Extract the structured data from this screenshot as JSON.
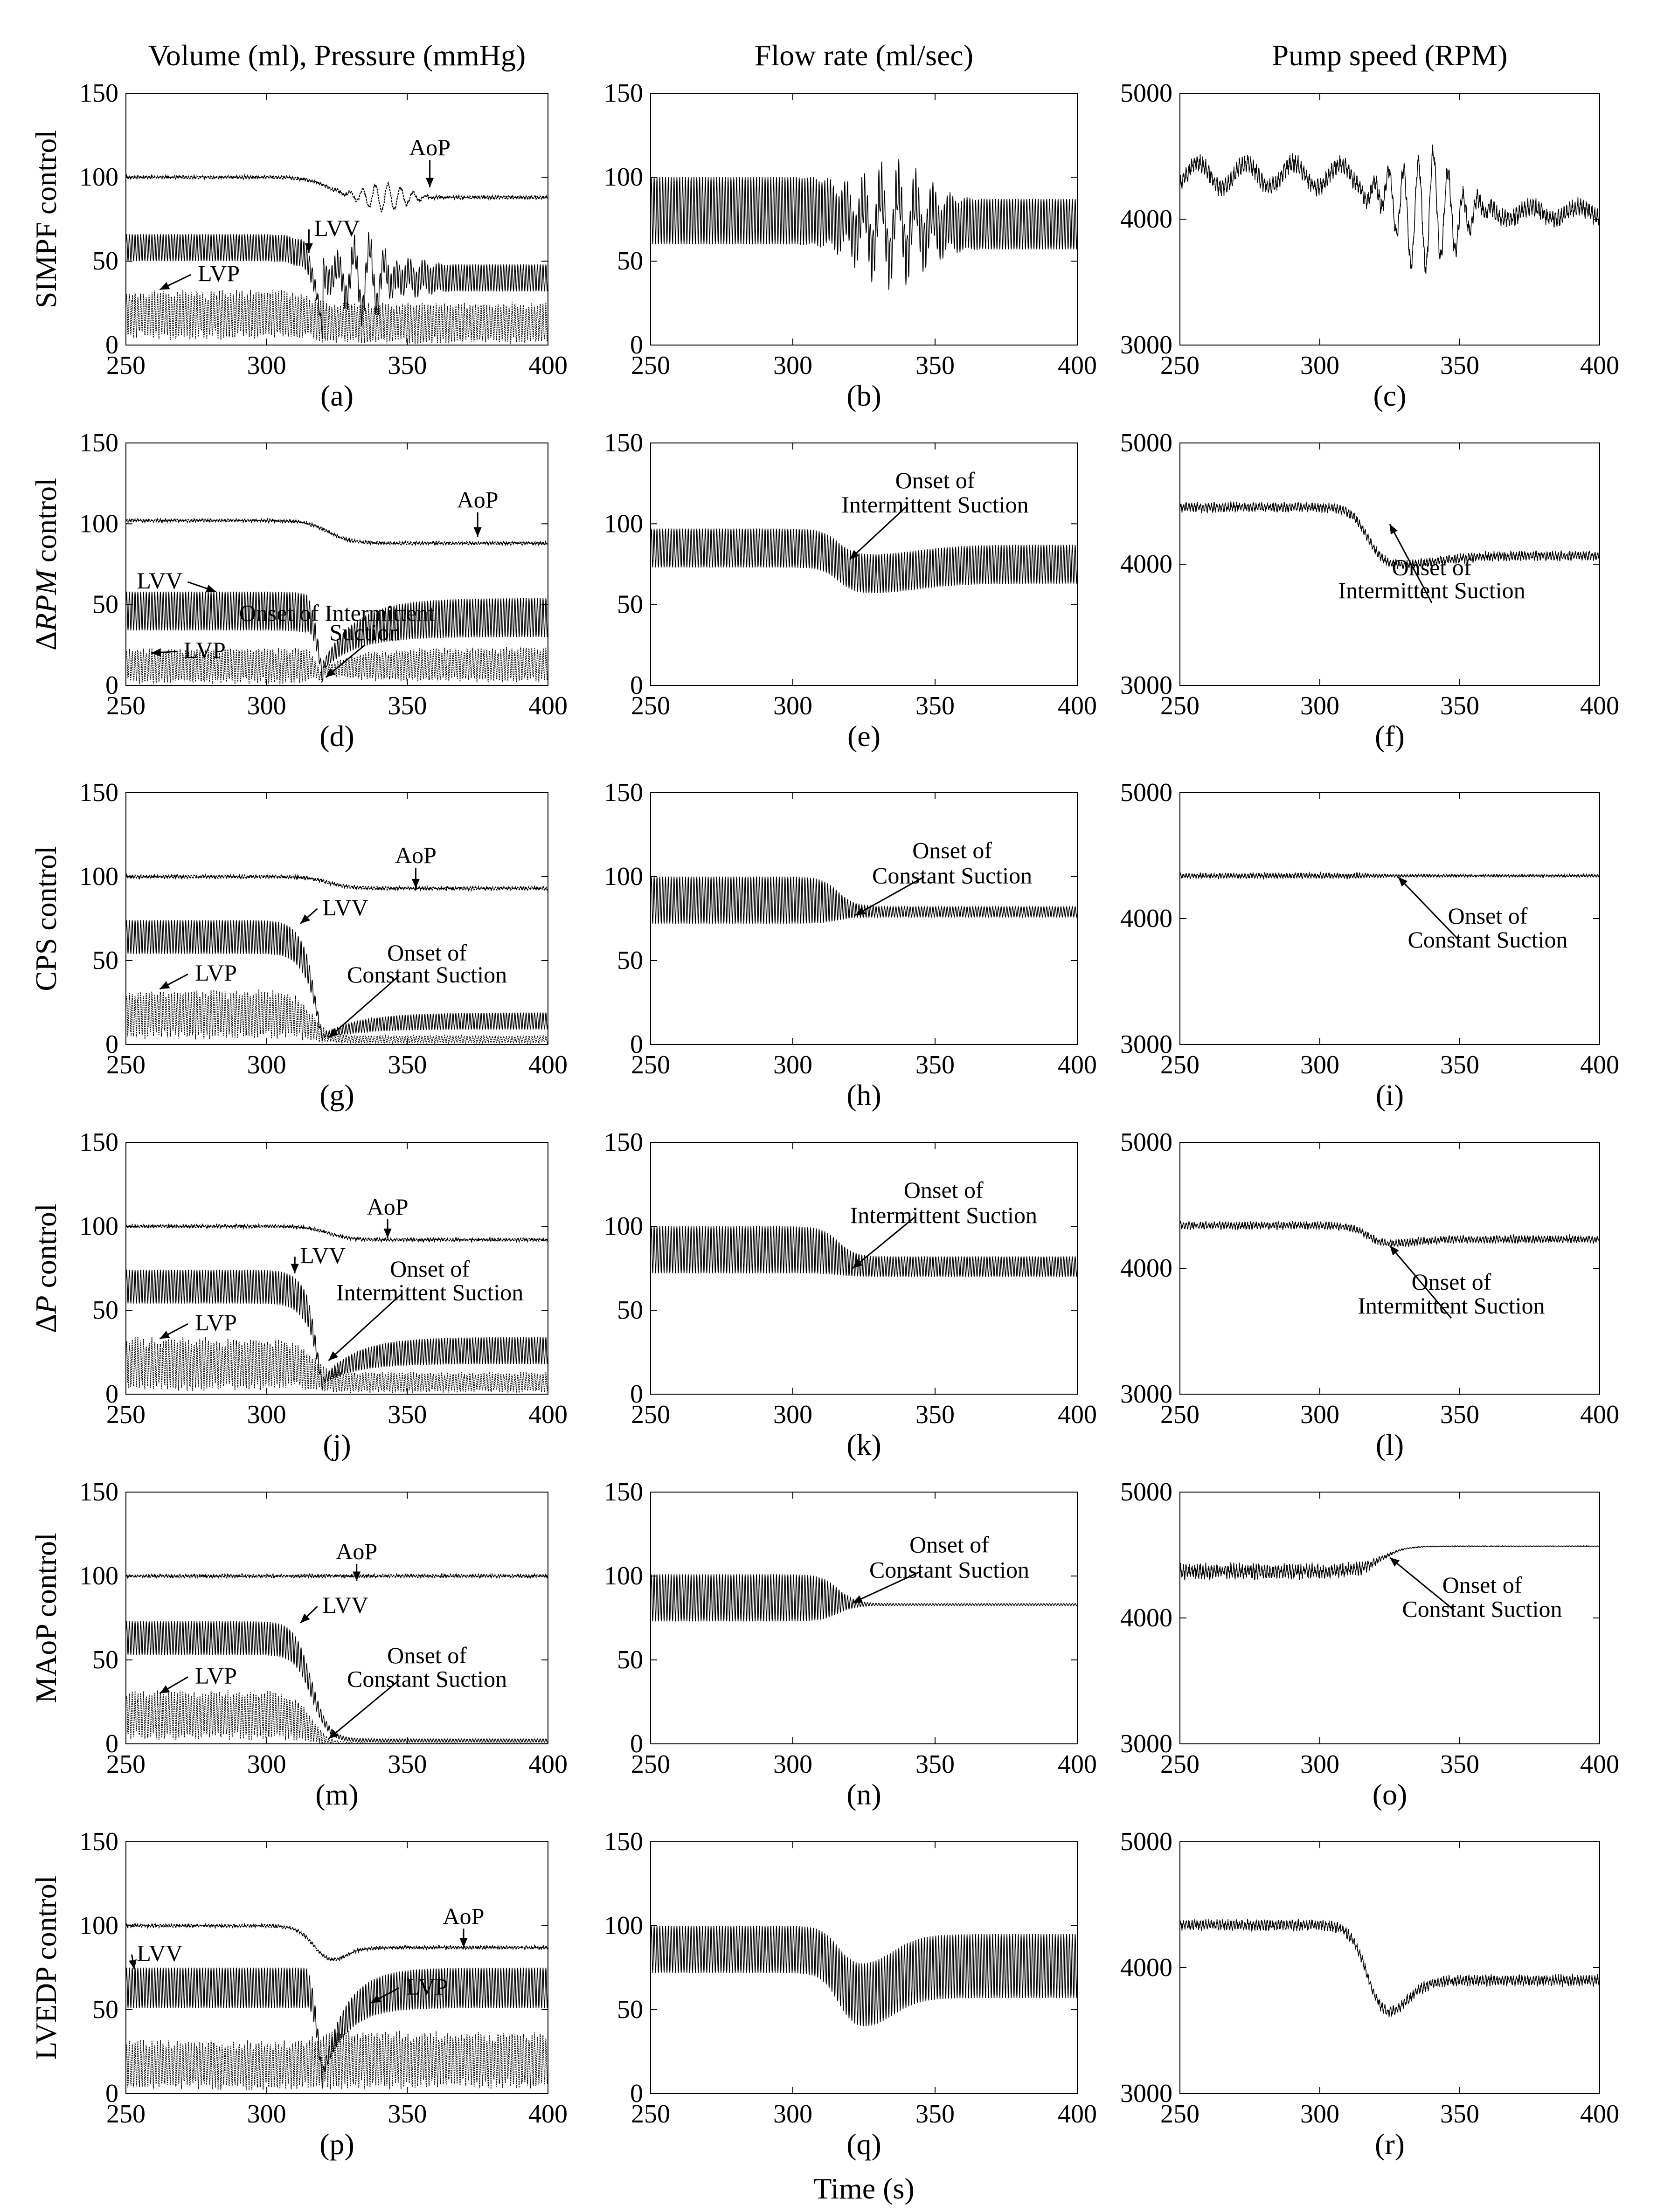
{
  "figure": {
    "column_titles": [
      "Volume (ml), Pressure (mmHg)",
      "Flow rate (ml/sec)",
      "Pump speed (RPM)"
    ],
    "row_labels": [
      "SIMPF control",
      "ΔRPM control",
      "CPS control",
      "ΔP control",
      "MAoP control",
      "LVEDP control"
    ],
    "x_axis_label": "Time (s)"
  },
  "chart_data": {
    "type": "line",
    "x_range": [
      250,
      400
    ],
    "x_ticks": [
      "250",
      "300",
      "350",
      "400"
    ],
    "onset_time": 320,
    "columns": [
      {
        "quantity": "volume_pressure",
        "ylim": [
          0,
          150
        ],
        "y_ticks": [
          "0",
          "50",
          "100",
          "150"
        ]
      },
      {
        "quantity": "flow_rate",
        "ylim": [
          0,
          150
        ],
        "y_ticks": [
          "0",
          "50",
          "100",
          "150"
        ]
      },
      {
        "quantity": "pump_speed",
        "ylim": [
          3000,
          5000
        ],
        "y_ticks": [
          "3000",
          "4000",
          "5000"
        ]
      }
    ],
    "rows": [
      {
        "name": "SIMPF control",
        "panels": [
          {
            "label": "(a)",
            "series": [
              {
                "name": "AoP",
                "before": 100,
                "after": 88,
                "osc": 1,
                "after_wobble": 8
              },
              {
                "name": "LVV",
                "before_mid": 58,
                "before_amp": 8,
                "after_mid": 40,
                "after_amp": 8,
                "dip": 15,
                "wobble": 12
              },
              {
                "name": "LVP",
                "before_mid": 18,
                "before_amp": 12,
                "after_mid": 13,
                "after_amp": 10
              }
            ],
            "annotations": [
              {
                "text": "AoP",
                "x": 358,
                "y": 113,
                "arrow_to": [
                  358,
                  94
                ]
              },
              {
                "text": "LVV",
                "x": 325,
                "y": 65,
                "arrow_to": [
                  315,
                  55
                ]
              },
              {
                "text": "LVP",
                "x": 283,
                "y": 38,
                "arrow_to": [
                  262,
                  33
                ]
              }
            ]
          },
          {
            "label": "(b)",
            "series": [
              {
                "name": "Flow",
                "before_mid": 80,
                "before_amp": 20,
                "after_mid": 72,
                "after_amp": 15,
                "wobble": 25
              }
            ],
            "annotations": []
          },
          {
            "label": "(c)",
            "series": [
              {
                "name": "Speed",
                "before": 4350,
                "after": 4050,
                "noise": 80,
                "wobble": 450
              }
            ],
            "annotations": []
          }
        ]
      },
      {
        "name": "ΔRPM control",
        "panels": [
          {
            "label": "(d)",
            "series": [
              {
                "name": "AoP",
                "before": 102,
                "after": 88,
                "osc": 1
              },
              {
                "name": "LVV",
                "before_mid": 46,
                "before_amp": 12,
                "after_mid": 42,
                "after_amp": 12,
                "dip": 46,
                "recover_s": 35
              },
              {
                "name": "LVP",
                "before_mid": 12,
                "before_amp": 9,
                "after_mid": 13,
                "after_amp": 9,
                "dip": 12,
                "recover_s": 35
              }
            ],
            "annotations": [
              {
                "text": "AoP",
                "x": 375,
                "y": 110,
                "arrow_to": [
                  375,
                  92
                ]
              },
              {
                "text": "LVV",
                "x": 262,
                "y": 60,
                "arrow_to": [
                  282,
                  58
                ]
              },
              {
                "text": "Onset of Intermittent",
                "x": 325,
                "y": 40,
                "arrow_to": null
              },
              {
                "text": "Suction",
                "x": 335,
                "y": 28,
                "arrow_to": [
                  321,
                  5
                ]
              },
              {
                "text": "LVP",
                "x": 278,
                "y": 17,
                "arrow_to": [
                  259,
                  20
                ]
              }
            ]
          },
          {
            "label": "(e)",
            "series": [
              {
                "name": "Flow",
                "before_mid": 85,
                "before_amp": 12,
                "after_mid": 75,
                "after_amp": 12,
                "dip_mid": 68,
                "recover_s": 40
              }
            ],
            "annotations": [
              {
                "text": "Onset of",
                "x": 350,
                "y": 122
              },
              {
                "text": "Intermittent Suction",
                "x": 350,
                "y": 107,
                "arrow_to": [
                  320,
                  78
                ]
              }
            ]
          },
          {
            "label": "(f)",
            "series": [
              {
                "name": "Speed",
                "before": 4470,
                "after": 4070,
                "noise": 45,
                "dip_to": 3970,
                "recover_s": 40
              }
            ],
            "annotations": [
              {
                "text": "Onset of",
                "x": 340,
                "y": 3910
              },
              {
                "text": "Intermittent Suction",
                "x": 340,
                "y": 3720,
                "arrow_to": [
                  325,
                  4330
                ]
              }
            ]
          }
        ]
      },
      {
        "name": "CPS control",
        "panels": [
          {
            "label": "(g)",
            "series": [
              {
                "name": "AoP",
                "before": 100,
                "after": 93,
                "osc": 1
              },
              {
                "name": "LVV",
                "before_mid": 64,
                "before_amp": 10,
                "after_mid": 14,
                "after_amp": 5,
                "dip": 12,
                "recover_s": 40
              },
              {
                "name": "LVP",
                "before_mid": 18,
                "before_amp": 12,
                "after_mid": 3,
                "after_amp": 2
              }
            ],
            "annotations": [
              {
                "text": "AoP",
                "x": 353,
                "y": 108,
                "arrow_to": [
                  353,
                  93
                ]
              },
              {
                "text": "LVV",
                "x": 328,
                "y": 77,
                "arrow_to": [
                  312,
                  72
                ]
              },
              {
                "text": "Onset of",
                "x": 357,
                "y": 50
              },
              {
                "text": "Constant Suction",
                "x": 357,
                "y": 37,
                "arrow_to": [
                  322,
                  4
                ]
              },
              {
                "text": "LVP",
                "x": 282,
                "y": 38,
                "arrow_to": [
                  262,
                  33
                ]
              }
            ]
          },
          {
            "label": "(h)",
            "series": [
              {
                "name": "Flow",
                "before_mid": 86,
                "before_amp": 14,
                "after_mid": 79,
                "after_amp": 3
              }
            ],
            "annotations": [
              {
                "text": "Onset of",
                "x": 356,
                "y": 111
              },
              {
                "text": "Constant Suction",
                "x": 356,
                "y": 96,
                "arrow_to": [
                  322,
                  77
                ]
              }
            ]
          },
          {
            "label": "(i)",
            "series": [
              {
                "name": "Speed",
                "before": 4340,
                "after": 4340,
                "noise": 25,
                "after_noise": 12
              }
            ],
            "annotations": [
              {
                "text": "Onset of",
                "x": 360,
                "y": 3960
              },
              {
                "text": "Constant Suction",
                "x": 360,
                "y": 3770,
                "arrow_to": [
                  328,
                  4330
                ]
              }
            ]
          }
        ]
      },
      {
        "name": "ΔP control",
        "panels": [
          {
            "label": "(j)",
            "series": [
              {
                "name": "AoP",
                "before": 100,
                "after": 92,
                "osc": 1
              },
              {
                "name": "LVV",
                "before_mid": 64,
                "before_amp": 10,
                "after_mid": 26,
                "after_amp": 8,
                "dip": 14,
                "recover_s": 35
              },
              {
                "name": "LVP",
                "before_mid": 18,
                "before_amp": 13,
                "after_mid": 7,
                "after_amp": 5
              }
            ],
            "annotations": [
              {
                "text": "AoP",
                "x": 343,
                "y": 107,
                "arrow_to": [
                  343,
                  93
                ]
              },
              {
                "text": "LVV",
                "x": 320,
                "y": 78,
                "arrow_to": [
                  310,
                  72
                ]
              },
              {
                "text": "Onset of",
                "x": 358,
                "y": 70
              },
              {
                "text": "Intermittent Suction",
                "x": 358,
                "y": 56,
                "arrow_to": [
                  322,
                  20
                ]
              },
              {
                "text": "LVP",
                "x": 282,
                "y": 38,
                "arrow_to": [
                  262,
                  33
                ]
              }
            ]
          },
          {
            "label": "(k)",
            "series": [
              {
                "name": "Flow",
                "before_mid": 86,
                "before_amp": 14,
                "after_mid": 76,
                "after_amp": 6
              }
            ],
            "annotations": [
              {
                "text": "Onset of",
                "x": 353,
                "y": 117
              },
              {
                "text": "Intermittent Suction",
                "x": 353,
                "y": 102,
                "arrow_to": [
                  321,
                  75
                ]
              }
            ]
          },
          {
            "label": "(l)",
            "series": [
              {
                "name": "Speed",
                "before": 4340,
                "after": 4230,
                "noise": 35,
                "dip_to": 4180,
                "recover_s": 25
              }
            ],
            "annotations": [
              {
                "text": "Onset of",
                "x": 347,
                "y": 3830
              },
              {
                "text": "Intermittent Suction",
                "x": 347,
                "y": 3640,
                "arrow_to": [
                  325,
                  4180
                ]
              }
            ]
          }
        ]
      },
      {
        "name": "MAoP control",
        "panels": [
          {
            "label": "(m)",
            "series": [
              {
                "name": "AoP",
                "before": 100,
                "after": 100,
                "osc": 1
              },
              {
                "name": "LVV",
                "before_mid": 63,
                "before_amp": 10,
                "after_mid": 2,
                "after_amp": 1
              },
              {
                "name": "LVP",
                "before_mid": 17,
                "before_amp": 12,
                "after_mid": 0,
                "after_amp": 0.5
              }
            ],
            "annotations": [
              {
                "text": "AoP",
                "x": 332,
                "y": 110,
                "arrow_to": [
                  332,
                  97
                ]
              },
              {
                "text": "LVV",
                "x": 328,
                "y": 78,
                "arrow_to": [
                  312,
                  72
                ]
              },
              {
                "text": "Onset of",
                "x": 357,
                "y": 48
              },
              {
                "text": "Constant Suction",
                "x": 357,
                "y": 34,
                "arrow_to": [
                  322,
                  3
                ]
              },
              {
                "text": "LVP",
                "x": 282,
                "y": 36,
                "arrow_to": [
                  262,
                  30
                ]
              }
            ]
          },
          {
            "label": "(n)",
            "series": [
              {
                "name": "Flow",
                "before_mid": 87,
                "before_amp": 14,
                "after_mid": 83,
                "after_amp": 0.6
              }
            ],
            "annotations": [
              {
                "text": "Onset of",
                "x": 355,
                "y": 114
              },
              {
                "text": "Constant Suction",
                "x": 355,
                "y": 99,
                "arrow_to": [
                  321,
                  84
                ]
              }
            ]
          },
          {
            "label": "(o)",
            "series": [
              {
                "name": "Speed",
                "before": 4370,
                "after": 4570,
                "noise": 70,
                "after_noise": 4
              }
            ],
            "annotations": [
              {
                "text": "Onset of",
                "x": 358,
                "y": 4200
              },
              {
                "text": "Constant Suction",
                "x": 358,
                "y": 4010,
                "arrow_to": [
                  325,
                  4480
                ]
              }
            ]
          }
        ]
      },
      {
        "name": "LVEDP control",
        "panels": [
          {
            "label": "(p)",
            "series": [
              {
                "name": "AoP",
                "before": 100,
                "after": 87,
                "osc": 1,
                "dip_to": 75,
                "recover_s": 15
              },
              {
                "name": "LVV",
                "before_mid": 63,
                "before_amp": 12,
                "after_mid": 63,
                "after_amp": 12,
                "dip": 32,
                "recover_s": 25
              },
              {
                "name": "LVP",
                "before_mid": 17,
                "before_amp": 12,
                "after_mid": 20,
                "after_amp": 14
              }
            ],
            "annotations": [
              {
                "text": "AoP",
                "x": 370,
                "y": 101,
                "arrow_to": [
                  370,
                  87
                ]
              },
              {
                "text": "LVV",
                "x": 262,
                "y": 79,
                "arrow_to": [
                  253,
                  74
                ]
              },
              {
                "text": "LVP",
                "x": 357,
                "y": 59,
                "arrow_to": [
                  337,
                  54
                ]
              }
            ]
          },
          {
            "label": "(q)",
            "series": [
              {
                "name": "Flow",
                "before_mid": 86,
                "before_amp": 14,
                "after_mid": 76,
                "after_amp": 19,
                "dip_mid": 55,
                "recover_s": 25
              }
            ],
            "annotations": []
          },
          {
            "label": "(r)",
            "series": [
              {
                "name": "Speed",
                "before": 4340,
                "after": 3900,
                "noise": 50,
                "dip_to": 3520,
                "recover_s": 20
              }
            ],
            "annotations": []
          }
        ]
      }
    ]
  }
}
